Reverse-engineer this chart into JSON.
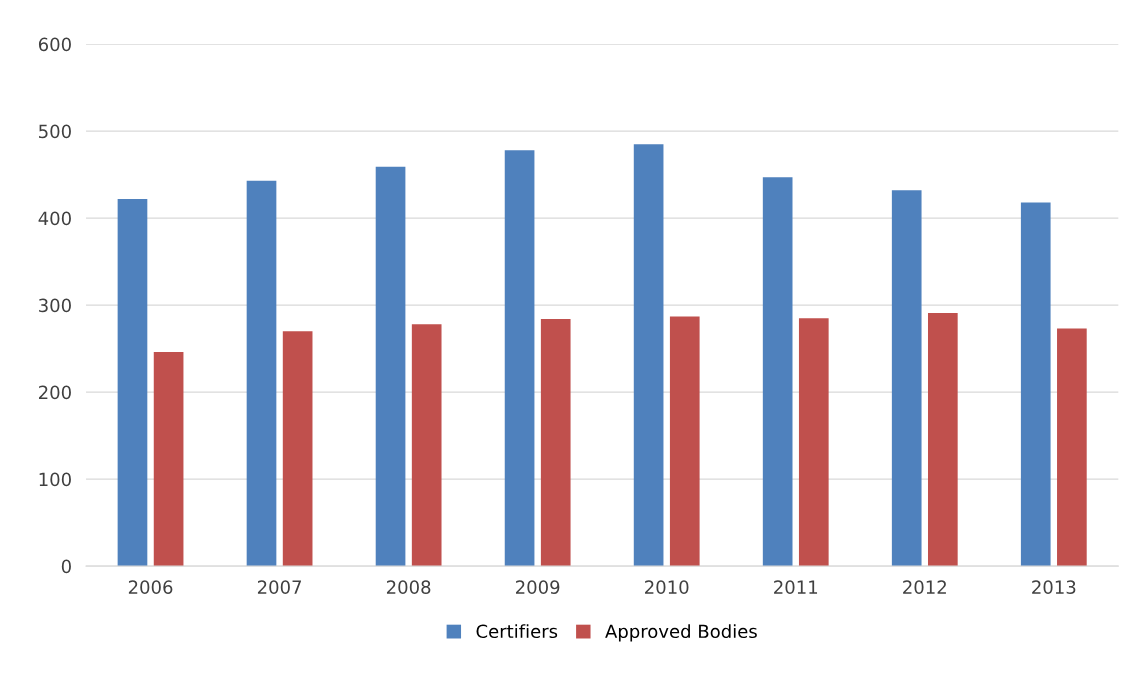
{
  "chart_data": {
    "type": "bar",
    "categories": [
      "2006",
      "2007",
      "2008",
      "2009",
      "2010",
      "2011",
      "2012",
      "2013"
    ],
    "series": [
      {
        "name": "Certifiers",
        "color": "#4f81bd",
        "values": [
          422,
          443,
          459,
          478,
          485,
          447,
          432,
          418
        ]
      },
      {
        "name": "Approved Bodies",
        "color": "#c0504d",
        "values": [
          246,
          270,
          278,
          284,
          287,
          285,
          291,
          273
        ]
      }
    ],
    "ylim": [
      0,
      600
    ],
    "yticks": [
      0,
      100,
      200,
      300,
      400,
      500,
      600
    ],
    "grid": "y",
    "legend": "bottom"
  }
}
